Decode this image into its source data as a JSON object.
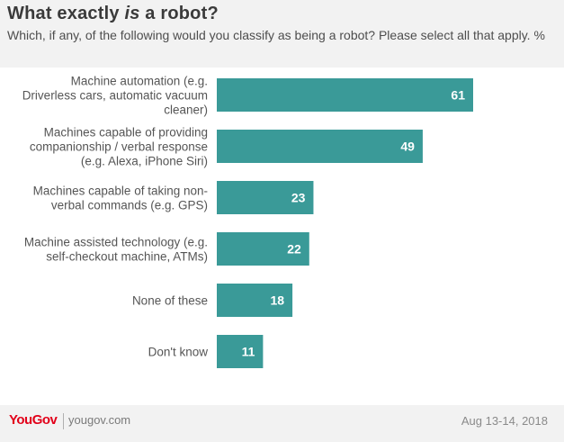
{
  "header": {
    "title_pre": "What exactly ",
    "title_em": "is",
    "title_post": " a robot?",
    "subtitle": "Which, if any, of the following would you classify as being a robot? Please select all that apply. %"
  },
  "chart_data": {
    "type": "bar",
    "orientation": "horizontal",
    "categories": [
      [
        "Machine automation (e.g.",
        "Driverless cars, automatic vacuum",
        "cleaner)"
      ],
      [
        "Machines capable of providing",
        "companionship / verbal response",
        "(e.g. Alexa, iPhone Siri)"
      ],
      [
        "Machines capable of taking non-",
        "verbal commands (e.g. GPS)"
      ],
      [
        "Machine assisted technology (e.g.",
        "self-checkout machine, ATMs)"
      ],
      [
        "None of these"
      ],
      [
        "Don't know"
      ]
    ],
    "values": [
      61,
      49,
      23,
      22,
      18,
      11
    ],
    "xlim": [
      0,
      61
    ],
    "bar_color": "#3a9a98",
    "value_label_color": "#ffffff",
    "grid": false,
    "legend": false
  },
  "footer": {
    "brand": "YouGov",
    "url": "yougov.com",
    "date": "Aug 13-14, 2018"
  }
}
